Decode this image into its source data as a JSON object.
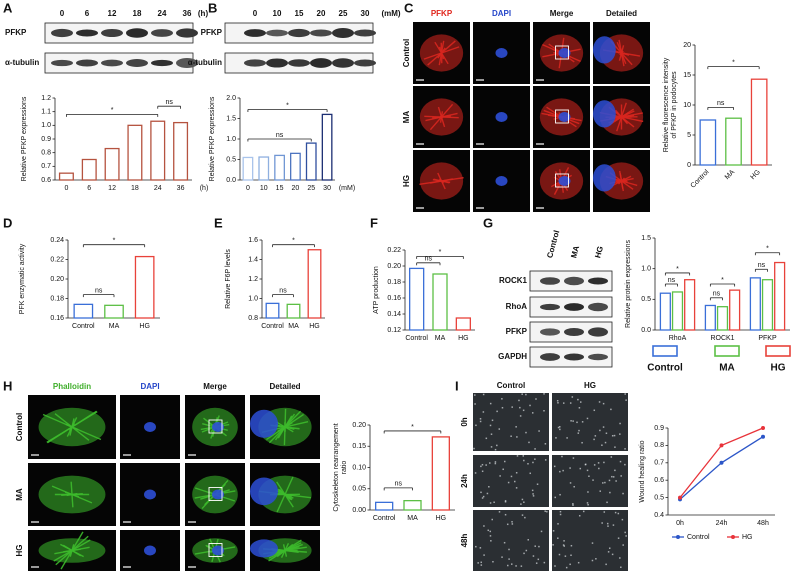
{
  "panel_labels": [
    "A",
    "B",
    "C",
    "D",
    "E",
    "F",
    "G",
    "H",
    "I"
  ],
  "blots": [
    {
      "columns": [
        "0",
        "6",
        "12",
        "18",
        "24",
        "36"
      ],
      "unit": "(h)",
      "rows": [
        "PFKP",
        "α-tubulin"
      ]
    },
    {
      "columns": [
        "0",
        "10",
        "15",
        "20",
        "25",
        "30"
      ],
      "unit": "(mM)",
      "rows": [
        "PFKP",
        "α-tubulin"
      ]
    },
    {
      "columns": [
        "Control",
        "MA",
        "HG"
      ],
      "rows": [
        "ROCK1",
        "RhoA",
        "PFKP",
        "GAPDH"
      ]
    }
  ],
  "micrographs": [
    {
      "columns": [
        "PFKP",
        "DAPI",
        "Merge",
        "Detailed"
      ],
      "column_colors": [
        "#e0241b",
        "#2546c9",
        "#111111",
        "#111111"
      ],
      "rows": [
        "Control",
        "MA",
        "HG"
      ]
    },
    {
      "columns": [
        "Phalloidin",
        "DAPI",
        "Merge",
        "Detailed"
      ],
      "column_colors": [
        "#3fae2a",
        "#2546c9",
        "#111111",
        "#111111"
      ],
      "rows": [
        "Control",
        "MA",
        "HG"
      ]
    },
    {
      "columns": [
        "Control",
        "HG"
      ],
      "column_colors": [
        "#111111",
        "#111111"
      ],
      "rows": [
        "0h",
        "24h",
        "48h"
      ]
    }
  ],
  "chart_data": [
    {
      "type": "bar",
      "ylabel": "Relative PFKP expressions",
      "xlabel": "(h)",
      "categories": [
        "0",
        "6",
        "12",
        "18",
        "24",
        "36"
      ],
      "values": [
        0.65,
        0.75,
        0.83,
        1.0,
        1.03,
        1.02
      ],
      "colors": [
        "#b5533f",
        "#b5533f",
        "#b5533f",
        "#b5533f",
        "#b5533f",
        "#b5533f"
      ],
      "ylim": [
        0.6,
        1.2
      ],
      "yticks": [
        0.6,
        0.7,
        0.8,
        0.9,
        {
          "value": 1,
          "label": "1.0"
        },
        1.1,
        1.2
      ],
      "annotations": [
        "*",
        "ns"
      ]
    },
    {
      "type": "bar",
      "ylabel": "Relative PFKP expressions",
      "xlabel": "(mM)",
      "categories": [
        "0",
        "10",
        "15",
        "20",
        "25",
        "30"
      ],
      "values": [
        0.55,
        0.56,
        0.6,
        0.65,
        0.9,
        1.6
      ],
      "colors": [
        "#a9c4eb",
        "#8fb0e0",
        "#7096d4",
        "#4d74c0",
        "#2f4f9e",
        "#1c2f73"
      ],
      "ylim": [
        0,
        2
      ],
      "yticks": [
        {
          "value": 0,
          "label": "0.0"
        },
        0.5,
        {
          "value": 1,
          "label": "1.0"
        },
        1.5,
        {
          "value": 2,
          "label": "2.0"
        }
      ],
      "annotations": [
        "*",
        "ns"
      ]
    },
    {
      "type": "bar",
      "ylabel": [
        "Relative fluorescence intensity",
        "of PFKP in podocytes"
      ],
      "categories": [
        "Control",
        "MA",
        "HG"
      ],
      "values": [
        7.5,
        7.8,
        14.3
      ],
      "colors": [
        "#3a6fd8",
        "#5cbf45",
        "#e8423a"
      ],
      "ylim": [
        0,
        20
      ],
      "yticks": [
        0,
        5,
        10,
        15,
        20
      ],
      "annotations": [
        "*",
        "ns"
      ]
    },
    {
      "type": "bar",
      "ylabel": "PFK enzymatic activity",
      "categories": [
        "Control",
        "MA",
        "HG"
      ],
      "values": [
        0.174,
        0.173,
        0.223
      ],
      "colors": [
        "#3a6fd8",
        "#5cbf45",
        "#e8423a"
      ],
      "ylim": [
        0.16,
        0.24
      ],
      "yticks": [
        0.16,
        0.18,
        {
          "value": 0.2,
          "label": "0.20"
        },
        0.22,
        0.24
      ],
      "annotations": [
        "*",
        "ns"
      ]
    },
    {
      "type": "bar",
      "ylabel": "Relative F6P levels",
      "categories": [
        "Control",
        "MA",
        "HG"
      ],
      "values": [
        0.95,
        0.94,
        1.5
      ],
      "colors": [
        "#3a6fd8",
        "#5cbf45",
        "#e8423a"
      ],
      "ylim": [
        0.8,
        1.6
      ],
      "yticks": [
        0.8,
        {
          "value": 1,
          "label": "1.0"
        },
        1.2,
        1.4,
        1.6
      ],
      "annotations": [
        "*",
        "ns"
      ]
    },
    {
      "type": "bar",
      "ylabel": "ATP production",
      "categories": [
        "Control",
        "MA",
        "HG"
      ],
      "values": [
        0.197,
        0.19,
        0.135
      ],
      "colors": [
        "#3a6fd8",
        "#5cbf45",
        "#e8423a"
      ],
      "ylim": [
        0.12,
        0.22
      ],
      "yticks": [
        0.12,
        0.14,
        0.16,
        0.18,
        {
          "value": 0.2,
          "label": "0.20"
        },
        0.22
      ],
      "annotations": [
        "*",
        "ns"
      ]
    },
    {
      "type": "grouped-bar",
      "ylabel": "Relative protein expressions",
      "categories": [
        "RhoA",
        "ROCK1",
        "PFKP"
      ],
      "series": [
        {
          "name": "Control",
          "color": "#3a6fd8",
          "values": [
            0.6,
            0.4,
            0.85
          ]
        },
        {
          "name": "MA",
          "color": "#5cbf45",
          "values": [
            0.62,
            0.38,
            0.82
          ]
        },
        {
          "name": "HG",
          "color": "#e8423a",
          "values": [
            0.82,
            0.65,
            1.1
          ]
        }
      ],
      "ylim": [
        0,
        1.5
      ],
      "yticks": [
        {
          "value": 0,
          "label": "0.0"
        },
        0.5,
        {
          "value": 1,
          "label": "1.0"
        },
        1.5
      ],
      "annotations": [
        "ns",
        "*",
        "ns",
        "*",
        "ns",
        "*"
      ],
      "legend": "bottom"
    },
    {
      "type": "bar",
      "ylabel": [
        "Cytoskeleton rearrangement",
        "ratio"
      ],
      "categories": [
        "Control",
        "MA",
        "HG"
      ],
      "values": [
        0.018,
        0.022,
        0.172
      ],
      "colors": [
        "#3a6fd8",
        "#5cbf45",
        "#e8423a"
      ],
      "ylim": [
        0,
        0.2
      ],
      "yticks": [
        {
          "value": 0,
          "label": "0.00"
        },
        0.05,
        {
          "value": 0.1,
          "label": "0.10"
        },
        0.15,
        {
          "value": 0.2,
          "label": "0.20"
        }
      ],
      "annotations": [
        "*",
        "ns"
      ]
    },
    {
      "type": "line",
      "ylabel": "Wound healing ratio",
      "categories": [
        "0h",
        "24h",
        "48h"
      ],
      "series": [
        {
          "name": "Control",
          "color": "#2c56c8",
          "values": [
            0.49,
            0.7,
            0.85
          ]
        },
        {
          "name": "HG",
          "color": "#e8333a",
          "values": [
            0.5,
            0.8,
            0.9
          ]
        }
      ],
      "ylim": [
        0.4,
        0.9
      ],
      "yticks": [
        0.4,
        0.5,
        0.6,
        0.7,
        0.8,
        0.9
      ],
      "legend": "bottom"
    }
  ]
}
